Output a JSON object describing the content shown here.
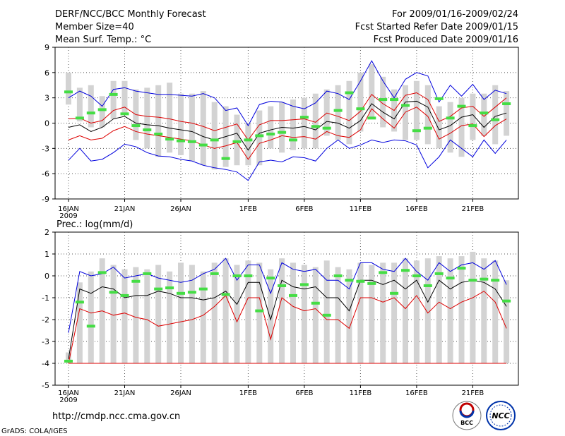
{
  "header": {
    "title": "DERF/NCC/BCC Monthly Forecast",
    "member_size": "Member Size=40",
    "variable": "Mean Surf. Temp.: °C",
    "forecast_for": "For 2009/01/16-2009/02/24",
    "start_date": "Fcst Started Refer Date 2009/01/15",
    "produced_date": "Fcst Produced Date 2009/01/16"
  },
  "footer": {
    "url": "http://cmdp.ncc.cma.gov.cn",
    "grads_credit": "GrADS: COLA/IGES",
    "logo_bcc": "BCC",
    "logo_ncc": "NCC"
  },
  "colors": {
    "bar": "#d3d3d3",
    "ensemble_mean": "#000000",
    "upper_bound": "#0000dd",
    "spread": "#dd0000",
    "analysis_dash": "#44dd44"
  },
  "chart_data": [
    {
      "type": "line",
      "name": "temperature",
      "title": "Mean Surf. Temp.: °C",
      "days": 40,
      "ylim": [
        -9,
        9
      ],
      "yticks": [
        -9,
        -6,
        -3,
        0,
        3,
        6,
        9
      ],
      "xtick_labels": [
        "16JAN",
        "21JAN",
        "26JAN",
        "1FEB",
        "6FEB",
        "11FEB",
        "16FEB",
        "21FEB"
      ],
      "xtick_days": [
        0,
        5,
        10,
        16,
        21,
        26,
        31,
        36
      ],
      "year_label": "2009",
      "box_low": [
        2.2,
        0.2,
        -0.5,
        -0.5,
        0.5,
        1.0,
        -2.0,
        -3.0,
        -4.0,
        -3.5,
        -3.8,
        -4.5,
        -5.0,
        -5.5,
        -5.2,
        -5.0,
        -5.0,
        -5.0,
        -3.0,
        -3.5,
        -3.2,
        -3.0,
        -3.0,
        -1.5,
        -2.0,
        -2.5,
        -1.0,
        0.5,
        -0.5,
        -1.0,
        -2.0,
        -2.0,
        -2.5,
        -3.0,
        -3.5,
        -4.0,
        -2.0,
        -1.5,
        -2.5,
        -1.5
      ],
      "box_high": [
        6.0,
        4.2,
        4.5,
        3.2,
        5.0,
        5.0,
        4.0,
        4.2,
        4.5,
        4.8,
        3.5,
        3.5,
        3.8,
        2.5,
        2.0,
        1.0,
        0.0,
        1.5,
        2.0,
        2.5,
        2.8,
        3.0,
        3.5,
        4.0,
        4.5,
        5.0,
        6.0,
        7.0,
        5.5,
        4.0,
        4.5,
        5.0,
        4.5,
        2.0,
        2.5,
        3.0,
        3.5,
        3.5,
        4.5,
        3.8
      ],
      "upper": [
        -4.4,
        -3.0,
        -4.5,
        -4.3,
        -3.5,
        -2.5,
        -2.8,
        -3.5,
        -3.9,
        -4.0,
        -4.3,
        -4.5,
        -5.0,
        -5.3,
        -5.5,
        -5.8,
        -6.8,
        -4.6,
        -4.4,
        -4.6,
        -4.0,
        -4.1,
        -4.5,
        -3.0,
        -2.0,
        -3.0,
        -2.6,
        -2.0,
        -2.3,
        -2.0,
        -2.1,
        -2.6,
        -5.3,
        -4.0,
        -2.0,
        -3.0,
        -4.0,
        -2.0,
        -3.6,
        -2.0
      ],
      "ensemble_mean": [
        -0.5,
        -0.2,
        -1.0,
        -0.5,
        0.5,
        0.8,
        0.0,
        -0.2,
        -0.3,
        -0.6,
        -0.8,
        -1.0,
        -1.6,
        -2.0,
        -1.6,
        -1.2,
        -3.2,
        -1.2,
        -0.8,
        -0.5,
        -0.6,
        -0.4,
        -0.8,
        0.2,
        0.0,
        -0.6,
        0.3,
        2.3,
        1.3,
        0.5,
        2.5,
        2.6,
        1.9,
        -0.8,
        -0.3,
        0.7,
        1.0,
        -0.5,
        0.8,
        1.2
      ],
      "spread_upper": [
        0.5,
        0.6,
        0.0,
        0.3,
        1.5,
        1.9,
        1.0,
        0.8,
        0.7,
        0.5,
        0.2,
        0.0,
        -0.4,
        -0.9,
        -0.5,
        -0.1,
        -2.0,
        -0.2,
        0.3,
        0.3,
        0.4,
        0.5,
        0.1,
        1.2,
        0.8,
        0.3,
        1.4,
        3.4,
        2.3,
        1.5,
        3.3,
        3.6,
        2.8,
        0.2,
        0.8,
        1.8,
        2.0,
        0.8,
        1.9,
        3.0
      ],
      "spread_lower": [
        -2.0,
        -1.5,
        -2.0,
        -1.8,
        -0.9,
        -0.4,
        -1.0,
        -1.3,
        -1.5,
        -1.7,
        -1.9,
        -2.1,
        -2.6,
        -3.0,
        -2.7,
        -2.3,
        -4.3,
        -2.4,
        -2.0,
        -1.5,
        -1.7,
        -1.6,
        -1.9,
        -1.0,
        -1.5,
        -1.7,
        -0.8,
        1.7,
        0.5,
        -0.6,
        1.3,
        1.9,
        0.8,
        -1.9,
        -1.2,
        -0.3,
        -0.1,
        -1.6,
        -0.3,
        0.5
      ],
      "upper_bound": [
        3.0,
        3.8,
        3.2,
        2.0,
        4.0,
        4.2,
        3.8,
        3.6,
        3.4,
        3.4,
        3.3,
        3.2,
        3.5,
        3.0,
        1.5,
        1.8,
        -0.3,
        2.2,
        2.6,
        2.5,
        2.0,
        1.7,
        2.4,
        3.8,
        3.5,
        2.8,
        5.0,
        7.4,
        5.0,
        3.0,
        5.2,
        6.0,
        5.6,
        2.5,
        4.5,
        3.2,
        4.6,
        2.8,
        3.9,
        3.5
      ],
      "analysis": [
        3.7,
        0.6,
        1.2,
        1.6,
        3.4,
        1.1,
        -0.3,
        -0.8,
        -1.3,
        -1.9,
        -2.1,
        -2.2,
        -2.6,
        -2.0,
        -4.2,
        -2.2,
        -2.0,
        -1.5,
        -1.3,
        -1.1,
        -2.0,
        0.7,
        -0.4,
        -0.6,
        1.5,
        3.6,
        1.7,
        0.6,
        2.8,
        2.8,
        2.1,
        -0.9,
        -0.6,
        2.9,
        0.6,
        2.0,
        -0.3,
        1.2,
        0.4,
        2.3
      ],
      "lower_bound": [
        -4.4,
        -3.0,
        -4.5,
        -4.3,
        -3.5,
        -2.5,
        -2.8,
        -3.5,
        -3.9,
        -4.0,
        -4.3,
        -4.5,
        -5.0,
        -5.3,
        -5.5,
        -5.8,
        -6.8,
        -4.6,
        -4.4,
        -4.6,
        -4.0,
        -4.1,
        -4.5,
        -3.0,
        -2.0,
        -3.0,
        -2.6,
        -2.0,
        -2.3,
        -2.0,
        -2.1,
        -2.6,
        -5.3,
        -4.0,
        -2.0,
        -3.0,
        -4.0,
        -2.0,
        -3.6,
        -2.0
      ]
    },
    {
      "type": "line",
      "name": "precipitation",
      "title": "Prec.: log(mm/d)",
      "days": 40,
      "ylim": [
        -5,
        2
      ],
      "yticks": [
        -5,
        -4,
        -3,
        -2,
        -1,
        0,
        1,
        2
      ],
      "xtick_labels": [
        "16JAN",
        "21JAN",
        "26JAN",
        "1FEB",
        "6FEB",
        "11FEB",
        "16FEB",
        "21FEB"
      ],
      "xtick_days": [
        0,
        5,
        10,
        16,
        21,
        26,
        31,
        36
      ],
      "year_label": "2009",
      "box_low": [
        -4.0,
        -4.0,
        -4.0,
        -4.0,
        -4.0,
        -4.0,
        -4.0,
        -4.0,
        -4.0,
        -4.0,
        -4.0,
        -4.0,
        -4.0,
        -4.0,
        -4.0,
        -4.0,
        -4.0,
        -4.0,
        -4.0,
        -4.0,
        -4.0,
        -4.0,
        -4.0,
        -4.0,
        -4.0,
        -4.0,
        -4.0,
        -4.0,
        -4.0,
        -4.0,
        -4.0,
        -4.0,
        -4.0,
        -4.0,
        -4.0,
        -4.0,
        -4.0,
        -4.0,
        -4.0,
        -4.0
      ],
      "box_high": [
        -3.5,
        -0.3,
        0.2,
        0.8,
        0.5,
        0.3,
        0.4,
        0.3,
        0.5,
        0.2,
        0.6,
        0.5,
        0.2,
        0.6,
        0.8,
        0.5,
        0.7,
        0.6,
        0.3,
        0.8,
        0.6,
        0.5,
        0.4,
        0.7,
        0.4,
        0.3,
        0.6,
        0.5,
        0.6,
        0.6,
        0.8,
        0.7,
        0.8,
        0.9,
        0.8,
        0.9,
        1.1,
        0.8,
        0.7,
        -0.2
      ],
      "ensemble_mean": [
        -3.8,
        -0.6,
        -0.8,
        -0.5,
        -0.6,
        -1.0,
        -0.9,
        -0.9,
        -0.7,
        -0.8,
        -1.0,
        -1.0,
        -1.1,
        -1.0,
        -0.7,
        -1.3,
        -0.3,
        -0.3,
        -2.0,
        -0.2,
        -0.5,
        -0.6,
        -0.5,
        -1.0,
        -1.0,
        -1.6,
        -0.2,
        -0.2,
        -0.4,
        -0.2,
        -0.6,
        -0.2,
        -1.2,
        -0.2,
        -0.6,
        -0.3,
        -0.2,
        -0.3,
        -0.6,
        -1.4
      ],
      "spread_lower": [
        -4.0,
        -1.5,
        -1.7,
        -1.6,
        -1.8,
        -1.7,
        -1.9,
        -2.0,
        -2.3,
        -2.2,
        -2.1,
        -2.0,
        -1.8,
        -1.4,
        -0.9,
        -2.1,
        -1.0,
        -1.0,
        -2.9,
        -1.0,
        -1.4,
        -1.6,
        -1.5,
        -2.0,
        -2.0,
        -2.4,
        -1.0,
        -1.0,
        -1.2,
        -1.0,
        -1.5,
        -0.9,
        -1.7,
        -1.2,
        -1.5,
        -1.2,
        -1.0,
        -0.7,
        -1.2,
        -2.4
      ],
      "upper_bound": [
        -2.6,
        0.2,
        0.0,
        0.1,
        0.4,
        -0.1,
        0.0,
        0.1,
        -0.1,
        -0.2,
        -0.3,
        -0.2,
        0.1,
        0.3,
        0.8,
        -0.2,
        0.5,
        0.5,
        -0.8,
        0.6,
        0.3,
        0.2,
        0.3,
        -0.2,
        -0.2,
        -0.6,
        0.6,
        0.6,
        0.3,
        0.2,
        0.8,
        0.2,
        -0.2,
        0.6,
        0.2,
        0.5,
        0.6,
        0.3,
        0.7,
        -0.4
      ],
      "analysis": [
        -3.9,
        -1.2,
        -2.3,
        0.15,
        -0.75,
        -0.9,
        -0.25,
        0.1,
        -0.6,
        -0.55,
        -0.8,
        -0.75,
        -0.6,
        0.1,
        -0.85,
        0.0,
        0.0,
        -1.6,
        -0.1,
        -0.45,
        -0.9,
        -0.4,
        -1.25,
        -1.8,
        0.0,
        -0.2,
        -0.25,
        -0.35,
        0.15,
        -0.8,
        0.25,
        0.0,
        -0.45,
        0.1,
        -0.1,
        0.35,
        -0.2,
        -0.15,
        -0.2,
        -1.15
      ],
      "floor": -4.0
    }
  ]
}
